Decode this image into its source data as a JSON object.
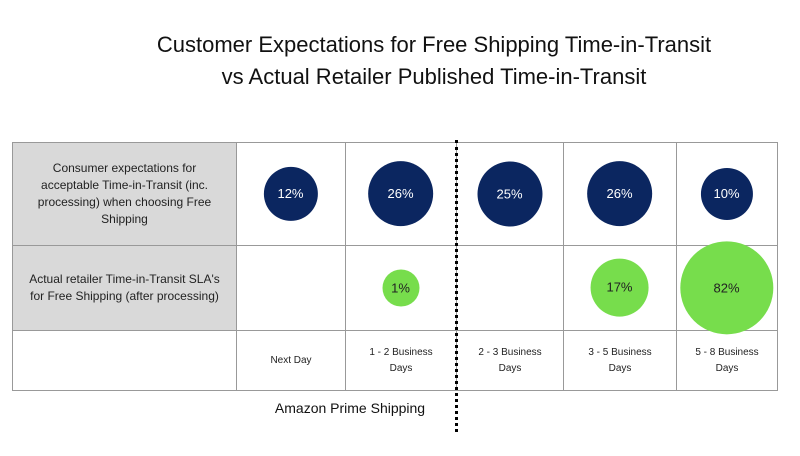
{
  "chart_data": {
    "type": "bubble",
    "title": [
      "Customer Expectations for Free Shipping Time-in-Transit",
      "vs Actual Retailer Published Time-in-Transit"
    ],
    "categories": [
      "Next Day",
      "1 - 2 Business Days",
      "2 - 3 Business Days",
      "3 - 5 Business Days",
      "5 - 8 Business Days"
    ],
    "series": [
      {
        "name": "Consumer expectations for acceptable Time-in-Transit (inc. processing) when choosing Free Shipping",
        "color": "#0b2660",
        "values": [
          12,
          26,
          25,
          26,
          10
        ],
        "value_labels": [
          "12%",
          "26%",
          "25%",
          "26%",
          "10%"
        ]
      },
      {
        "name": "Actual retailer Time-in-Transit SLA's for Free Shipping (after processing)",
        "color": "#77dd4c",
        "values": [
          null,
          1,
          null,
          17,
          82
        ],
        "value_labels": [
          null,
          "1%",
          null,
          "17%",
          "82%"
        ]
      }
    ],
    "annotation": "Amazon Prime Shipping"
  }
}
